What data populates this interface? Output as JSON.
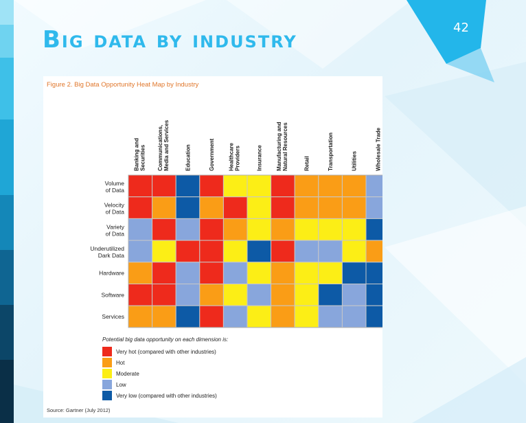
{
  "slide": {
    "title": "Big data by industry",
    "page_number": "42",
    "colors": {
      "title": "#2fb9ec",
      "accent": "#1fb0e6"
    }
  },
  "chart_data": {
    "type": "heatmap",
    "title": "Figure 2. Big Data Opportunity Heat Map by Industry",
    "columns": [
      "Banking and Securities",
      "Communications, Media and Services",
      "Education",
      "Government",
      "Healthcare Providers",
      "Insurance",
      "Manufacturing and Natural Resources",
      "Retail",
      "Transportation",
      "Utilities",
      "Wholesale Trade"
    ],
    "rows": [
      "Volume of Data",
      "Velocity of Data",
      "Variety of Data",
      "Underutilized Dark Data",
      "Hardware",
      "Software",
      "Services"
    ],
    "levels": {
      "4": {
        "label": "Very hot (compared with other industries)",
        "color": "#ee2a1c"
      },
      "3": {
        "label": "Hot",
        "color": "#fa9d16"
      },
      "2": {
        "label": "Moderate",
        "color": "#fcee16"
      },
      "1": {
        "label": "Low",
        "color": "#88a6dc"
      },
      "0": {
        "label": "Very low (compared with other industries)",
        "color": "#0d5aa6"
      }
    },
    "legend_order": [
      4,
      3,
      2,
      1,
      0
    ],
    "legend_title": "Potential big data opportunity on each dimension is:",
    "values": [
      [
        4,
        4,
        0,
        4,
        2,
        2,
        4,
        3,
        3,
        3,
        1
      ],
      [
        4,
        3,
        0,
        3,
        4,
        2,
        4,
        3,
        3,
        3,
        1
      ],
      [
        1,
        4,
        1,
        4,
        3,
        2,
        3,
        2,
        2,
        2,
        0
      ],
      [
        1,
        2,
        4,
        4,
        2,
        0,
        4,
        1,
        1,
        2,
        3
      ],
      [
        3,
        4,
        1,
        4,
        1,
        2,
        3,
        2,
        2,
        0,
        0
      ],
      [
        4,
        4,
        1,
        3,
        2,
        1,
        3,
        2,
        0,
        1,
        0
      ],
      [
        3,
        3,
        0,
        4,
        1,
        2,
        3,
        2,
        1,
        1,
        0
      ]
    ],
    "source": "Source: Gartner (July 2012)"
  }
}
